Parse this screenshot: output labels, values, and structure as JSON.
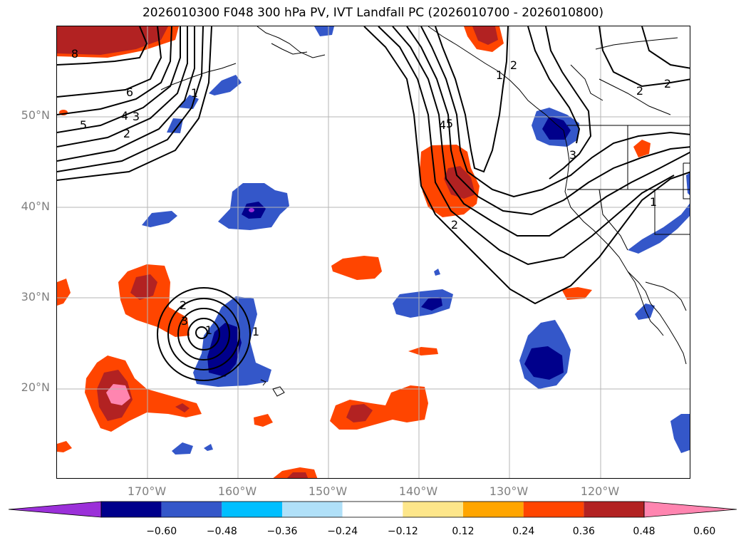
{
  "title": "2026010300 F048 300 hPa PV, IVT Landfall PC (2026010700 - 2026010800)",
  "map": {
    "lat_labels": [
      "50°N",
      "40°N",
      "30°N",
      "20°N"
    ],
    "lon_labels": [
      "170°W",
      "160°W",
      "150°W",
      "140°W",
      "130°W",
      "120°W"
    ],
    "extent": {
      "lon_min": -180,
      "lon_max": -110,
      "lat_min": 10,
      "lat_max": 60
    },
    "contour_labels": [
      "8",
      "6",
      "5",
      "4",
      "3",
      "2",
      "1",
      "1",
      "2",
      "3",
      "1",
      "5",
      "4",
      "2",
      "2",
      "2",
      "1",
      "3",
      "1",
      "2"
    ]
  },
  "colorbar": {
    "ticks": [
      "−0.60",
      "−0.48",
      "−0.36",
      "−0.24",
      "−0.12",
      "0.12",
      "0.24",
      "0.36",
      "0.48",
      "0.60"
    ],
    "colors": [
      "#9b30d9",
      "#00008b",
      "#3457c9",
      "#00bfff",
      "#b0e0f8",
      "#ffffff",
      "#fde68a",
      "#ffa500",
      "#ff4500",
      "#b22222",
      "#ff85b0"
    ]
  },
  "colors": {
    "neg_deep": "#00008b",
    "neg_mid": "#3457c9",
    "neg_light": "#00bfff",
    "neg_pale": "#b0e0f8",
    "pos_pale": "#fde68a",
    "pos_light": "#ffa500",
    "pos_mid": "#ff4500",
    "pos_deep": "#b22222",
    "pos_max": "#ff85b0",
    "neg_extreme": "#9b30d9"
  }
}
